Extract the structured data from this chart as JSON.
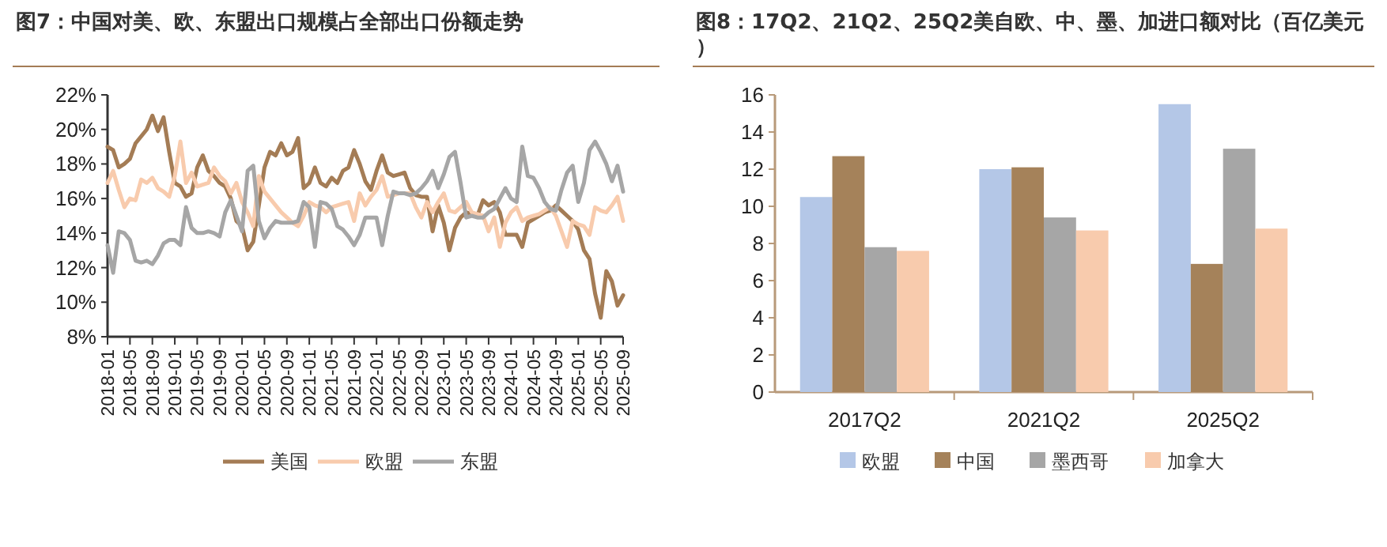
{
  "chart_data": [
    {
      "type": "line",
      "title": "图7：中国对美、欧、东盟出口规模占全部出口份额走势",
      "legend": "bottom",
      "categories": [
        "2018-01",
        null,
        null,
        null,
        "2018-05",
        null,
        null,
        null,
        "2018-09",
        null,
        null,
        null,
        "2019-01",
        null,
        null,
        null,
        "2019-05",
        null,
        null,
        null,
        "2019-09",
        null,
        null,
        null,
        "2020-01",
        null,
        null,
        null,
        "2020-05",
        null,
        null,
        null,
        "2020-09",
        null,
        null,
        null,
        "2021-01",
        null,
        null,
        null,
        "2021-05",
        null,
        null,
        null,
        "2021-09",
        null,
        null,
        null,
        "2022-01",
        null,
        null,
        null,
        "2022-05",
        null,
        null,
        null,
        "2022-09",
        null,
        null,
        null,
        "2023-01",
        null,
        null,
        null,
        "2023-05",
        null,
        null,
        null,
        "2023-09",
        null,
        null,
        null,
        "2024-01",
        null,
        null,
        null,
        "2024-05",
        null,
        null,
        null,
        "2024-09",
        null,
        null,
        null,
        "2025-01",
        null,
        null,
        null,
        "2025-05",
        null,
        null,
        null,
        "2025-09"
      ],
      "ylim": [
        8,
        22
      ],
      "yticks": [
        {
          "value": 8,
          "label": "8%"
        },
        {
          "value": 10,
          "label": "10%"
        },
        {
          "value": 12,
          "label": "12%"
        },
        {
          "value": 14,
          "label": "14%"
        },
        {
          "value": 16,
          "label": "16%"
        },
        {
          "value": 18,
          "label": "18%"
        },
        {
          "value": 20,
          "label": "20%"
        },
        {
          "value": 22,
          "label": "22%"
        }
      ],
      "series": [
        {
          "name": "美国",
          "color": "#a47c55",
          "values": [
            19.0,
            18.8,
            17.8,
            18.0,
            18.3,
            19.2,
            19.6,
            20.0,
            20.8,
            19.9,
            20.7,
            18.7,
            16.9,
            16.7,
            16.1,
            16.3,
            17.8,
            18.5,
            17.6,
            17.3,
            16.9,
            16.7,
            16.0,
            14.7,
            14.4,
            13.0,
            13.5,
            15.6,
            17.8,
            18.7,
            18.5,
            19.2,
            18.5,
            18.7,
            19.5,
            16.6,
            16.9,
            17.8,
            16.9,
            16.7,
            17.2,
            16.9,
            17.6,
            17.8,
            18.8,
            18.0,
            17.0,
            16.5,
            17.6,
            18.5,
            17.5,
            17.3,
            17.4,
            17.5,
            16.6,
            16.2,
            16.1,
            16.1,
            14.1,
            15.6,
            14.6,
            13.0,
            14.3,
            14.9,
            15.2,
            15.1,
            15.0,
            15.9,
            15.6,
            15.8,
            15.2,
            13.9,
            13.9,
            13.9,
            13.2,
            14.6,
            14.8,
            15.0,
            15.2,
            15.3,
            15.6,
            15.3,
            15.0,
            14.7,
            14.2,
            13.0,
            12.5,
            10.5,
            9.1,
            11.8,
            11.2,
            9.8,
            10.4
          ]
        },
        {
          "name": "欧盟",
          "color": "#f8cbad",
          "values": [
            16.9,
            17.6,
            16.5,
            15.5,
            16.0,
            15.9,
            17.1,
            16.9,
            17.2,
            16.6,
            16.4,
            16.1,
            17.3,
            19.3,
            16.9,
            17.5,
            16.7,
            16.8,
            16.9,
            17.8,
            17.3,
            17.0,
            16.3,
            16.9,
            15.8,
            15.2,
            14.4,
            17.3,
            16.4,
            16.0,
            15.6,
            15.2,
            14.9,
            14.6,
            14.4,
            15.0,
            15.8,
            15.6,
            15.5,
            15.2,
            15.5,
            15.6,
            15.7,
            15.8,
            14.7,
            16.3,
            15.6,
            16.1,
            16.5,
            17.3,
            16.1,
            16.2,
            16.3,
            16.3,
            16.3,
            15.5,
            14.9,
            15.8,
            15.2,
            15.8,
            16.3,
            15.3,
            15.2,
            15.5,
            15.8,
            15.2,
            15.1,
            15.0,
            14.1,
            14.9,
            13.2,
            14.6,
            15.2,
            15.5,
            14.7,
            14.9,
            15.0,
            15.1,
            15.3,
            15.5,
            15.0,
            14.1,
            13.2,
            14.7,
            14.5,
            14.4,
            13.9,
            15.5,
            15.3,
            15.2,
            15.6,
            16.1,
            14.7
          ]
        },
        {
          "name": "东盟",
          "color": "#a6a6a6",
          "values": [
            13.3,
            11.7,
            14.1,
            14.0,
            13.6,
            12.4,
            12.3,
            12.4,
            12.2,
            12.7,
            13.4,
            13.6,
            13.6,
            13.3,
            15.5,
            14.3,
            14.0,
            14.0,
            14.1,
            14.0,
            13.8,
            15.2,
            15.9,
            15.0,
            14.1,
            17.6,
            17.9,
            14.7,
            13.7,
            14.3,
            14.7,
            14.6,
            14.6,
            14.6,
            14.7,
            15.8,
            15.5,
            13.2,
            15.8,
            15.7,
            15.4,
            14.4,
            14.2,
            13.8,
            13.3,
            13.9,
            14.9,
            14.9,
            14.9,
            13.3,
            15.0,
            16.4,
            16.3,
            16.3,
            16.2,
            16.3,
            16.6,
            17.0,
            17.6,
            16.6,
            17.4,
            18.4,
            18.7,
            16.9,
            14.9,
            15.0,
            14.9,
            14.9,
            15.2,
            15.4,
            16.0,
            16.6,
            16.0,
            15.8,
            19.0,
            17.3,
            17.2,
            16.6,
            15.8,
            15.4,
            15.3,
            16.5,
            17.5,
            17.9,
            15.8,
            16.9,
            18.8,
            19.3,
            18.7,
            18.0,
            17.0,
            17.9,
            16.4
          ]
        }
      ]
    },
    {
      "type": "bar",
      "title": "图8：17Q2、21Q2、25Q2美自欧、中、墨、加进口额对比（百亿美元）",
      "legend": "bottom",
      "categories": [
        "2017Q2",
        "2021Q2",
        "2025Q2"
      ],
      "ylim": [
        0,
        16
      ],
      "yticks": [
        0,
        2,
        4,
        6,
        8,
        10,
        12,
        14,
        16
      ],
      "series": [
        {
          "name": "欧盟",
          "color": "#b4c7e7",
          "values": [
            10.5,
            12.0,
            15.5
          ]
        },
        {
          "name": "中国",
          "color": "#a5825a",
          "values": [
            12.7,
            12.1,
            6.9
          ]
        },
        {
          "name": "墨西哥",
          "color": "#a6a6a6",
          "values": [
            7.8,
            9.4,
            13.1
          ]
        },
        {
          "name": "加拿大",
          "color": "#f8cbad",
          "values": [
            7.6,
            8.7,
            8.8
          ]
        }
      ]
    }
  ]
}
